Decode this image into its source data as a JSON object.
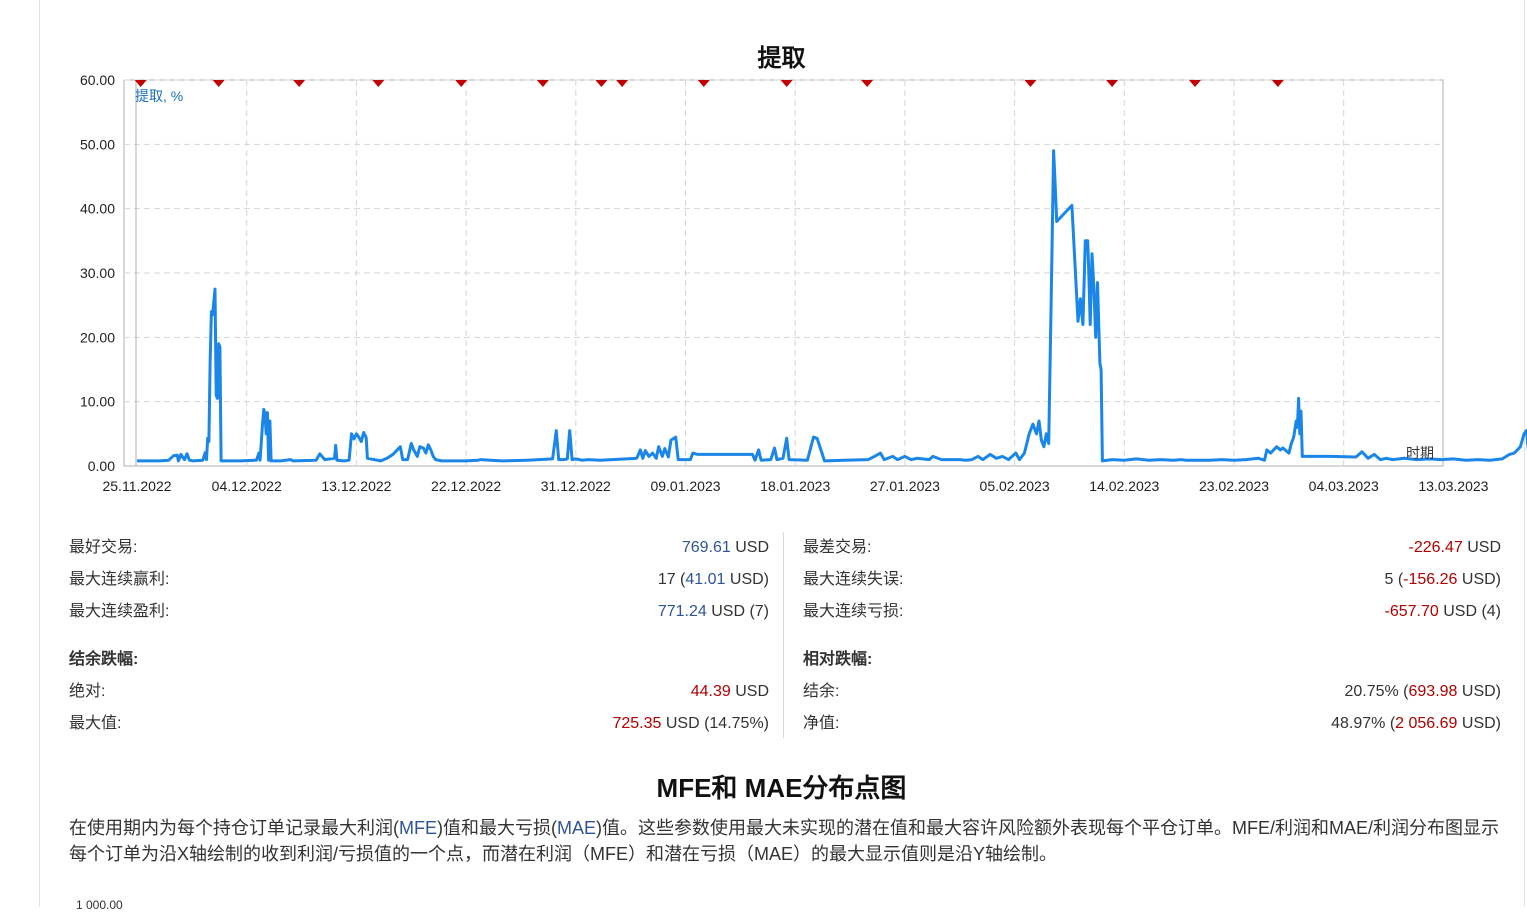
{
  "chart_data": {
    "type": "line",
    "title": "提取",
    "ylabel": "提取, %",
    "xlabel": "时期",
    "ylim": [
      0,
      60
    ],
    "yticks": [
      "0.00",
      "10.00",
      "20.00",
      "30.00",
      "40.00",
      "50.00",
      "60.00"
    ],
    "xticks": [
      "25.11.2022",
      "04.12.2022",
      "13.12.2022",
      "22.12.2022",
      "31.12.2022",
      "09.01.2023",
      "18.01.2023",
      "27.01.2023",
      "05.02.2023",
      "14.02.2023",
      "23.02.2023",
      "04.03.2023",
      "13.03.2023"
    ],
    "x_start": "25.11.2022",
    "x_end": "13.03.2023",
    "grid": true,
    "series": [
      {
        "name": "提取, %",
        "color": "#1a86e8",
        "points": [
          [
            0.0,
            0.8
          ],
          [
            1.8,
            0.8
          ],
          [
            2.6,
            0.9
          ],
          [
            3.0,
            1.6
          ],
          [
            3.3,
            1.7
          ],
          [
            3.4,
            0.8
          ],
          [
            3.6,
            1.8
          ],
          [
            3.9,
            1.0
          ],
          [
            4.1,
            1.9
          ],
          [
            4.3,
            0.9
          ],
          [
            4.6,
            0.8
          ],
          [
            5.4,
            0.9
          ],
          [
            5.6,
            2.1
          ],
          [
            5.7,
            1.0
          ],
          [
            5.8,
            4.3
          ],
          [
            5.9,
            3.8
          ],
          [
            6.0,
            16.0
          ],
          [
            6.1,
            24.0
          ],
          [
            6.2,
            23.5
          ],
          [
            6.3,
            25.5
          ],
          [
            6.4,
            27.5
          ],
          [
            6.5,
            11.0
          ],
          [
            6.6,
            10.5
          ],
          [
            6.7,
            19.0
          ],
          [
            6.8,
            18.5
          ],
          [
            6.9,
            0.8
          ],
          [
            8.5,
            0.8
          ],
          [
            9.8,
            0.9
          ],
          [
            10.0,
            2.0
          ],
          [
            10.1,
            0.9
          ],
          [
            10.3,
            6.5
          ],
          [
            10.4,
            8.8
          ],
          [
            10.5,
            8.0
          ],
          [
            10.6,
            5.0
          ],
          [
            10.7,
            8.3
          ],
          [
            10.8,
            0.9
          ],
          [
            10.9,
            7.0
          ],
          [
            11.0,
            0.8
          ],
          [
            11.8,
            0.8
          ],
          [
            12.6,
            1.0
          ],
          [
            12.8,
            0.8
          ],
          [
            14.7,
            0.9
          ],
          [
            15.0,
            1.9
          ],
          [
            15.4,
            1.0
          ],
          [
            16.2,
            1.2
          ],
          [
            16.3,
            3.2
          ],
          [
            16.4,
            0.9
          ],
          [
            17.0,
            0.8
          ],
          [
            17.4,
            0.9
          ],
          [
            17.6,
            5.0
          ],
          [
            17.8,
            4.2
          ],
          [
            18.0,
            5.0
          ],
          [
            18.2,
            4.5
          ],
          [
            18.4,
            3.8
          ],
          [
            18.6,
            5.2
          ],
          [
            18.8,
            4.4
          ],
          [
            18.9,
            1.2
          ],
          [
            20.0,
            0.8
          ],
          [
            20.5,
            1.2
          ],
          [
            21.0,
            1.8
          ],
          [
            21.6,
            3.0
          ],
          [
            21.8,
            1.0
          ],
          [
            22.2,
            1.0
          ],
          [
            22.5,
            3.5
          ],
          [
            22.7,
            2.5
          ],
          [
            23.0,
            1.5
          ],
          [
            23.2,
            3.0
          ],
          [
            23.5,
            2.8
          ],
          [
            23.7,
            2.0
          ],
          [
            23.9,
            3.3
          ],
          [
            24.1,
            2.5
          ],
          [
            24.3,
            1.5
          ],
          [
            24.5,
            1.0
          ],
          [
            25.0,
            0.8
          ],
          [
            27.0,
            0.8
          ],
          [
            28.0,
            0.9
          ],
          [
            28.2,
            1.0
          ],
          [
            29.0,
            0.9
          ],
          [
            30.0,
            0.8
          ],
          [
            32.0,
            0.9
          ],
          [
            33.0,
            1.0
          ],
          [
            34.1,
            1.1
          ],
          [
            34.4,
            5.5
          ],
          [
            34.6,
            1.0
          ],
          [
            35.0,
            1.0
          ],
          [
            35.3,
            1.1
          ],
          [
            35.5,
            5.5
          ],
          [
            35.7,
            1.0
          ],
          [
            36.0,
            1.1
          ],
          [
            36.5,
            0.9
          ],
          [
            37.0,
            1.0
          ],
          [
            38.0,
            0.9
          ],
          [
            41.0,
            1.2
          ],
          [
            41.3,
            2.5
          ],
          [
            41.5,
            1.2
          ],
          [
            41.7,
            2.4
          ],
          [
            42.0,
            1.5
          ],
          [
            42.3,
            2.0
          ],
          [
            42.6,
            1.2
          ],
          [
            42.8,
            3.0
          ],
          [
            43.1,
            1.5
          ],
          [
            43.3,
            2.7
          ],
          [
            43.6,
            1.4
          ],
          [
            43.8,
            4.0
          ],
          [
            44.2,
            4.5
          ],
          [
            44.4,
            1.0
          ],
          [
            45.4,
            1.0
          ],
          [
            45.6,
            2.0
          ],
          [
            46.0,
            1.8
          ],
          [
            50.5,
            1.8
          ],
          [
            50.7,
            0.9
          ],
          [
            51.0,
            2.5
          ],
          [
            51.2,
            0.9
          ],
          [
            52.0,
            1.0
          ],
          [
            52.3,
            2.8
          ],
          [
            52.5,
            1.0
          ],
          [
            53.0,
            1.2
          ],
          [
            53.3,
            4.3
          ],
          [
            53.5,
            1.0
          ],
          [
            55.0,
            0.9
          ],
          [
            55.5,
            4.5
          ],
          [
            55.8,
            4.3
          ],
          [
            56.2,
            2.0
          ],
          [
            56.4,
            0.8
          ],
          [
            58.0,
            0.9
          ],
          [
            60.0,
            1.0
          ],
          [
            60.5,
            1.5
          ],
          [
            61.0,
            2.0
          ],
          [
            61.3,
            1.0
          ],
          [
            62.0,
            1.5
          ],
          [
            62.4,
            1.0
          ],
          [
            63.0,
            1.5
          ],
          [
            63.5,
            1.0
          ],
          [
            64.0,
            1.2
          ],
          [
            65.0,
            1.0
          ],
          [
            65.3,
            1.5
          ],
          [
            66.0,
            1.0
          ],
          [
            67.5,
            1.0
          ],
          [
            68.0,
            0.9
          ],
          [
            68.5,
            1.0
          ],
          [
            69.0,
            1.5
          ],
          [
            69.4,
            1.0
          ],
          [
            70.0,
            1.8
          ],
          [
            70.5,
            1.2
          ],
          [
            71.0,
            1.5
          ],
          [
            71.5,
            1.0
          ],
          [
            72.1,
            2.0
          ],
          [
            72.4,
            1.0
          ],
          [
            72.8,
            2.0
          ],
          [
            73.2,
            5.0
          ],
          [
            73.5,
            6.5
          ],
          [
            73.8,
            5.0
          ],
          [
            74.0,
            7.0
          ],
          [
            74.2,
            4.0
          ],
          [
            74.4,
            3.0
          ],
          [
            74.6,
            5.0
          ],
          [
            74.8,
            3.5
          ],
          [
            75.0,
            26.0
          ],
          [
            75.2,
            49.0
          ],
          [
            75.3,
            45.0
          ],
          [
            75.45,
            38.0
          ],
          [
            76.7,
            40.5
          ],
          [
            77.2,
            22.5
          ],
          [
            77.4,
            26.0
          ],
          [
            77.6,
            22.0
          ],
          [
            77.8,
            35.0
          ],
          [
            78.0,
            35.0
          ],
          [
            78.1,
            29.0
          ],
          [
            78.2,
            22.0
          ],
          [
            78.35,
            33.0
          ],
          [
            78.5,
            28.0
          ],
          [
            78.65,
            20.0
          ],
          [
            78.8,
            28.5
          ],
          [
            79.0,
            16.0
          ],
          [
            79.1,
            15.0
          ],
          [
            79.2,
            0.8
          ],
          [
            80.0,
            1.0
          ],
          [
            81.0,
            0.9
          ],
          [
            82.0,
            1.1
          ],
          [
            83.0,
            0.9
          ],
          [
            84.0,
            1.0
          ],
          [
            85.0,
            0.9
          ],
          [
            85.7,
            1.0
          ],
          [
            86.0,
            0.9
          ],
          [
            88.0,
            0.9
          ],
          [
            89.0,
            1.0
          ],
          [
            90.0,
            0.9
          ],
          [
            91.0,
            1.0
          ],
          [
            92.0,
            1.2
          ],
          [
            92.5,
            0.9
          ],
          [
            92.7,
            2.5
          ],
          [
            93.0,
            2.0
          ],
          [
            93.5,
            3.0
          ],
          [
            93.8,
            2.5
          ],
          [
            94.0,
            2.8
          ],
          [
            94.5,
            2.0
          ],
          [
            94.7,
            3.5
          ],
          [
            94.9,
            4.5
          ],
          [
            95.1,
            7.0
          ],
          [
            95.2,
            6.0
          ],
          [
            95.3,
            10.5
          ],
          [
            95.4,
            5.0
          ],
          [
            95.5,
            8.5
          ],
          [
            95.6,
            1.5
          ],
          [
            96.0,
            1.5
          ],
          [
            98.0,
            1.5
          ],
          [
            100.0,
            1.4
          ],
          [
            100.5,
            2.2
          ],
          [
            101.0,
            1.2
          ],
          [
            101.5,
            1.8
          ],
          [
            102.0,
            1.0
          ],
          [
            102.5,
            1.2
          ],
          [
            103.0,
            1.0
          ],
          [
            104.0,
            1.2
          ],
          [
            105.0,
            1.0
          ],
          [
            106.0,
            1.1
          ],
          [
            107.0,
            1.0
          ],
          [
            108.0,
            1.1
          ],
          [
            109.0,
            0.9
          ],
          [
            110.0,
            1.0
          ],
          [
            111.0,
            0.9
          ],
          [
            112.0,
            1.1
          ],
          [
            112.6,
            1.8
          ],
          [
            113.0,
            2.0
          ],
          [
            113.5,
            3.0
          ],
          [
            113.8,
            5.0
          ],
          [
            114.0,
            5.5
          ],
          [
            114.2,
            1.5
          ],
          [
            114.5,
            1.2
          ],
          [
            115.0,
            1.5
          ],
          [
            115.4,
            1.0
          ],
          [
            116.0,
            1.3
          ],
          [
            116.5,
            1.5
          ],
          [
            116.7,
            5.5
          ],
          [
            116.9,
            5.2
          ]
        ]
      }
    ],
    "markers_x_days": [
      0.3,
      6.7,
      13.3,
      19.8,
      26.6,
      33.3,
      38.1,
      39.8,
      46.5,
      53.3,
      59.9,
      73.3,
      80.0,
      86.8,
      93.6
    ]
  },
  "stats_left": [
    {
      "label": "最好交易:",
      "value": "769.61",
      "suffix": " USD",
      "color": "blue"
    },
    {
      "label": "最大连续赢利:",
      "value_prefix": "17 (",
      "value": "41.01",
      "suffix": " USD)",
      "color": "blue"
    },
    {
      "label": "最大连续盈利:",
      "value": "771.24",
      "suffix": " USD (7)",
      "color": "blue"
    }
  ],
  "stats_right": [
    {
      "label": "最差交易:",
      "value": "-226.47",
      "suffix": " USD",
      "color": "red"
    },
    {
      "label": "最大连续失误:",
      "value_prefix": "5 (",
      "value": "-156.26",
      "suffix": " USD)",
      "color": "red"
    },
    {
      "label": "最大连续亏损:",
      "value": "-657.70",
      "suffix": " USD (4)",
      "color": "red"
    }
  ],
  "balance_drawdown": {
    "heading": "结余跌幅:",
    "absolute_label": "绝对:",
    "absolute_value": "44.39",
    "absolute_suffix": " USD",
    "max_label": "最大值:",
    "max_value": "725.35",
    "max_suffix": " USD (14.75%)"
  },
  "relative_drawdown": {
    "heading": "相对跌幅:",
    "balance_label": "结余:",
    "balance_prefix": "20.75% (",
    "balance_value": "693.98",
    "balance_suffix": " USD)",
    "equity_label": "净值:",
    "equity_prefix": "48.97% (",
    "equity_value": "2 056.69",
    "equity_suffix": " USD)"
  },
  "mfe_section": {
    "title": "MFE和 MAE分布点图",
    "desc_parts": [
      "在使用期内为每个持仓订单记录最大利润(",
      "MFE",
      ")值和最大亏损(",
      "MAE",
      ")值。这些参数使用最大未实现的潜在值和最大容许风险额外表现每个平仓订单。MFE/利润和MAE/利润分布图显示每个订单为沿X轴绘制的收到利润/亏损值的一个点，而潜在利润（MFE）和潜在亏损（MAE）的最大显示值则是沿Y轴绘制。"
    ],
    "next_chart_top_tick": "1 000.00"
  }
}
